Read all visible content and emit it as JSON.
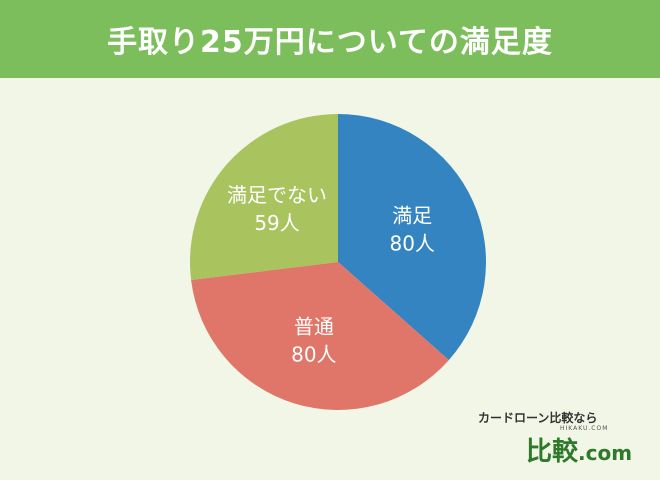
{
  "header": {
    "title": "手取り25万円についての満足度"
  },
  "chart_data": {
    "type": "pie",
    "title": "手取り25万円についての満足度",
    "start_angle_deg": 0,
    "direction": "clockwise",
    "slices": [
      {
        "label": "満足",
        "value": 80,
        "value_label": "80人",
        "color": "#3584c2"
      },
      {
        "label": "普通",
        "value": 80,
        "value_label": "80人",
        "color": "#df7669"
      },
      {
        "label": "満足でない",
        "value": 59,
        "value_label": "59人",
        "color": "#a9c35e"
      }
    ]
  },
  "brand": {
    "tagline": "カードローン比較なら",
    "site_small": "HIKAKU.COM",
    "logo_text": "比較",
    "logo_suffix": ".com"
  }
}
